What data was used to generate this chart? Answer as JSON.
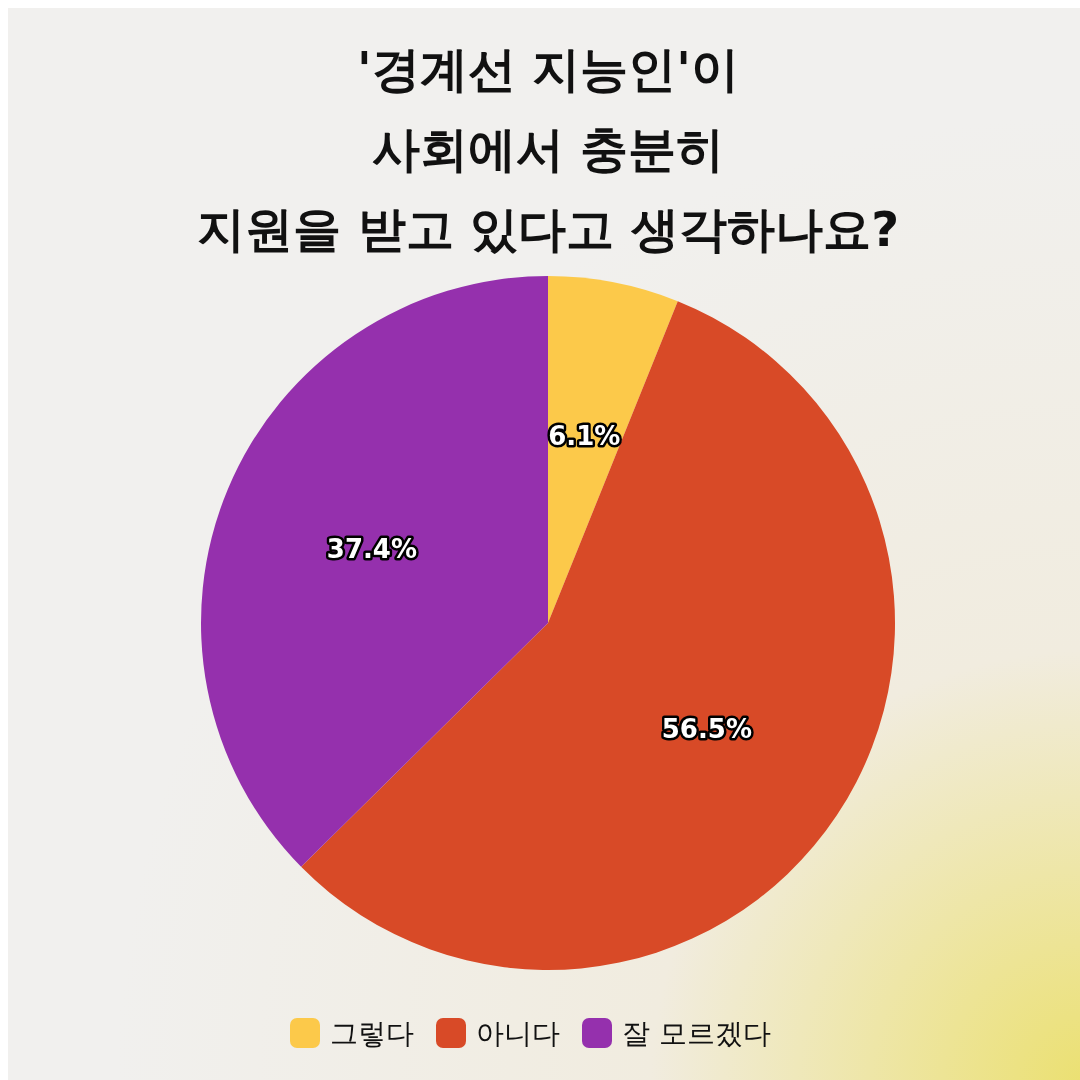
{
  "chart_data": {
    "type": "pie",
    "title": "'경계선 지능인'이\n사회에서 충분히\n지원을 받고 있다고 생각하나요?",
    "categories": [
      "그렇다",
      "아니다",
      "잘 모르겠다"
    ],
    "values": [
      6.1,
      56.5,
      37.4
    ],
    "colors": [
      "#fcc94a",
      "#d84a27",
      "#9530ad"
    ],
    "value_labels": [
      "6.1%",
      "56.5%",
      "37.4%"
    ],
    "legend": "bottom"
  }
}
